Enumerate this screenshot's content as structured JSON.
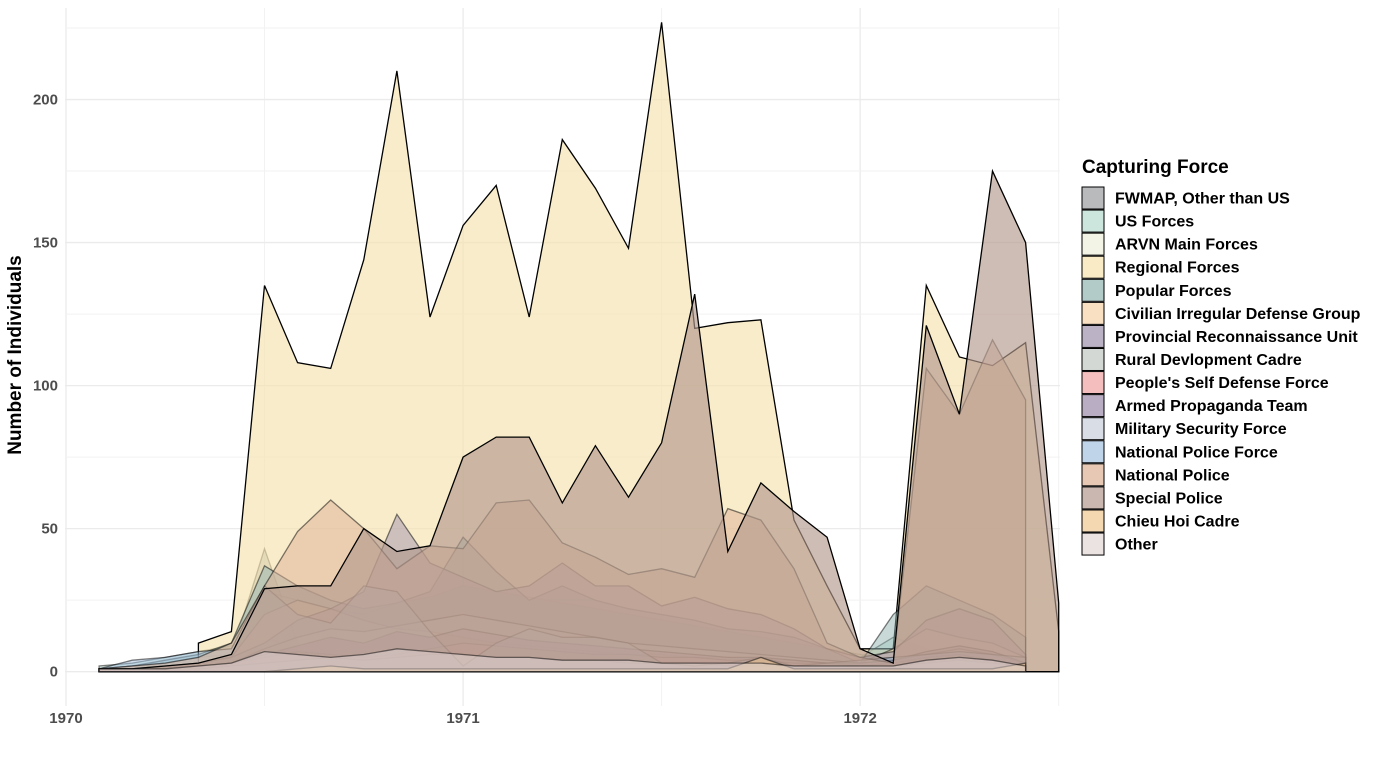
{
  "chart_data": {
    "type": "area",
    "title": "",
    "xlabel": "",
    "ylabel": "Number of Individuals",
    "grid": true,
    "legend_position": "right",
    "legend_title": "Capturing Force",
    "x_ticks": [
      "1970",
      "1971",
      "1972"
    ],
    "y_ticks": [
      0,
      50,
      100,
      150,
      200
    ],
    "ylim": [
      -12,
      232
    ],
    "xlim": [
      "1970-01",
      "1972-07"
    ],
    "series": [
      {
        "name": "FWMAP, Other than US",
        "color": "#9a9d9f",
        "x": [
          "1970-02",
          "1970-03",
          "1970-04",
          "1970-05",
          "1970-06",
          "1970-07",
          "1970-08",
          "1970-09",
          "1970-10",
          "1970-11",
          "1970-12",
          "1971-01",
          "1971-02",
          "1971-03",
          "1971-04",
          "1971-05",
          "1971-06",
          "1971-07",
          "1971-08",
          "1971-09",
          "1971-10",
          "1971-11",
          "1971-12",
          "1972-01",
          "1972-02",
          "1972-03",
          "1972-04",
          "1972-05",
          "1972-06"
        ],
        "values": [
          1,
          1,
          2,
          3,
          6,
          43,
          10,
          5,
          4,
          3,
          3,
          2,
          2,
          1,
          1,
          1,
          1,
          1,
          1,
          1,
          1,
          1,
          1,
          1,
          1,
          1,
          1,
          1,
          1
        ]
      },
      {
        "name": "US Forces",
        "color": "#b7dbd0",
        "x": [
          "1970-02",
          "1970-03",
          "1970-04",
          "1970-05",
          "1970-06",
          "1970-07",
          "1970-08",
          "1970-09",
          "1970-10",
          "1970-11",
          "1970-12",
          "1971-01",
          "1971-02",
          "1971-03",
          "1971-04",
          "1971-05",
          "1971-06",
          "1971-07",
          "1971-08",
          "1971-09",
          "1971-10",
          "1971-11",
          "1971-12",
          "1972-01",
          "1972-02",
          "1972-03",
          "1972-04",
          "1972-05",
          "1972-06"
        ],
        "values": [
          2,
          3,
          5,
          7,
          9,
          12,
          8,
          6,
          5,
          4,
          3,
          3,
          3,
          2,
          2,
          2,
          2,
          2,
          2,
          2,
          2,
          2,
          2,
          5,
          12,
          8,
          4,
          3,
          2
        ]
      },
      {
        "name": "ARVN Main Forces",
        "color": "#eef0da",
        "x": [
          "1970-02",
          "1970-03",
          "1970-04",
          "1970-05",
          "1970-06",
          "1970-07",
          "1970-08",
          "1970-09",
          "1970-10",
          "1970-11",
          "1970-12",
          "1971-01",
          "1971-02",
          "1971-03",
          "1971-04",
          "1971-05",
          "1971-06",
          "1971-07",
          "1971-08",
          "1971-09",
          "1971-10",
          "1971-11",
          "1971-12",
          "1972-01",
          "1972-02",
          "1972-03",
          "1972-04",
          "1972-05",
          "1972-06"
        ],
        "values": [
          1,
          2,
          3,
          5,
          6,
          28,
          25,
          22,
          20,
          24,
          26,
          30,
          28,
          26,
          24,
          22,
          20,
          18,
          16,
          14,
          12,
          10,
          8,
          6,
          4,
          6,
          8,
          6,
          4
        ]
      },
      {
        "name": "Regional Forces",
        "color": "#f5e2ad",
        "x": [
          "1970-05",
          "1970-06",
          "1970-07",
          "1970-08",
          "1970-09",
          "1970-10",
          "1970-11",
          "1970-12",
          "1971-01",
          "1971-02",
          "1971-03",
          "1971-04",
          "1971-05",
          "1971-06",
          "1971-07",
          "1971-08",
          "1971-09",
          "1971-10",
          "1971-11",
          "1971-12",
          "1972-01",
          "1972-02",
          "1972-03",
          "1972-04",
          "1972-05",
          "1972-06",
          "1972-07"
        ],
        "values": [
          10,
          14,
          135,
          108,
          106,
          144,
          210,
          124,
          156,
          170,
          124,
          186,
          169,
          148,
          227,
          120,
          122,
          123,
          53,
          30,
          8,
          8,
          135,
          110,
          107,
          115,
          14
        ]
      },
      {
        "name": "Popular Forces",
        "color": "#91b3b1",
        "x": [
          "1970-02",
          "1970-03",
          "1970-04",
          "1970-05",
          "1970-06",
          "1970-07",
          "1970-08",
          "1970-09",
          "1970-10",
          "1970-11",
          "1970-12",
          "1971-01",
          "1971-02",
          "1971-03",
          "1971-04",
          "1971-05",
          "1971-06",
          "1971-07",
          "1971-08",
          "1971-09",
          "1971-10",
          "1971-11",
          "1971-12",
          "1972-01",
          "1972-02",
          "1972-03",
          "1972-04",
          "1972-05",
          "1972-06"
        ],
        "values": [
          1,
          2,
          4,
          6,
          10,
          37,
          30,
          25,
          22,
          24,
          28,
          47,
          35,
          25,
          30,
          25,
          22,
          20,
          18,
          15,
          14,
          12,
          8,
          3,
          20,
          30,
          25,
          20,
          12
        ]
      },
      {
        "name": "Civilian Irregular Defense Group",
        "color": "#f7d3a8",
        "x": [
          "1970-02",
          "1970-03",
          "1970-04",
          "1970-05",
          "1970-06",
          "1970-07",
          "1970-08",
          "1970-09",
          "1970-10",
          "1970-11",
          "1970-12",
          "1971-01",
          "1971-02",
          "1971-03",
          "1971-04",
          "1971-05",
          "1971-06",
          "1971-07",
          "1971-08",
          "1971-09",
          "1971-10",
          "1971-11",
          "1971-12",
          "1972-01",
          "1972-02",
          "1972-03",
          "1972-04",
          "1972-05",
          "1972-06"
        ],
        "values": [
          1,
          1,
          2,
          3,
          5,
          20,
          25,
          22,
          18,
          15,
          14,
          12,
          10,
          9,
          8,
          7,
          6,
          6,
          5,
          5,
          4,
          4,
          3,
          3,
          8,
          15,
          12,
          10,
          5
        ]
      },
      {
        "name": "Provincial Reconnaissance Unit",
        "color": "#9f92ad",
        "x": [
          "1970-02",
          "1970-03",
          "1970-04",
          "1970-05",
          "1970-06",
          "1970-07",
          "1970-08",
          "1970-09",
          "1970-10",
          "1970-11",
          "1970-12",
          "1971-01",
          "1971-02",
          "1971-03",
          "1971-04",
          "1971-05",
          "1971-06",
          "1971-07",
          "1971-08",
          "1971-09",
          "1971-10",
          "1971-11",
          "1971-12",
          "1972-01",
          "1972-02",
          "1972-03",
          "1972-04",
          "1972-05",
          "1972-06"
        ],
        "values": [
          1,
          1,
          2,
          3,
          5,
          10,
          18,
          22,
          28,
          55,
          38,
          33,
          28,
          30,
          38,
          30,
          30,
          23,
          26,
          22,
          20,
          15,
          8,
          5,
          7,
          18,
          22,
          18,
          6
        ]
      },
      {
        "name": "Rural Devlopment Cadre",
        "color": "#c2c8c2",
        "x": [
          "1970-02",
          "1970-03",
          "1970-04",
          "1970-05",
          "1970-06",
          "1970-07",
          "1970-08",
          "1970-09",
          "1970-10",
          "1970-11",
          "1970-12",
          "1971-01",
          "1971-02",
          "1971-03",
          "1971-04",
          "1971-05",
          "1971-06",
          "1971-07",
          "1971-08",
          "1971-09",
          "1971-10",
          "1971-11",
          "1971-12",
          "1972-01",
          "1972-02",
          "1972-03",
          "1972-04",
          "1972-05",
          "1972-06"
        ],
        "values": [
          1,
          1,
          1,
          2,
          3,
          8,
          12,
          15,
          14,
          16,
          18,
          20,
          18,
          16,
          14,
          12,
          10,
          9,
          8,
          7,
          6,
          5,
          4,
          3,
          4,
          6,
          8,
          6,
          3
        ]
      },
      {
        "name": "People's Self Defense Force",
        "color": "#f0a3a3",
        "x": [
          "1970-02",
          "1970-03",
          "1970-04",
          "1970-05",
          "1970-06",
          "1970-07",
          "1970-08",
          "1970-09",
          "1970-10",
          "1970-11",
          "1970-12",
          "1971-01",
          "1971-02",
          "1971-03",
          "1971-04",
          "1971-05",
          "1971-06",
          "1971-07",
          "1971-08",
          "1971-09",
          "1971-10",
          "1971-11",
          "1971-12",
          "1972-01",
          "1972-02",
          "1972-03",
          "1972-04",
          "1972-05",
          "1972-06"
        ],
        "values": [
          1,
          1,
          1,
          2,
          3,
          5,
          7,
          6,
          5,
          6,
          8,
          10,
          9,
          8,
          7,
          6,
          6,
          5,
          5,
          4,
          4,
          3,
          3,
          2,
          3,
          5,
          6,
          4,
          2
        ]
      },
      {
        "name": "Armed Propaganda Team",
        "color": "#9a8aa8",
        "x": [
          "1970-02",
          "1970-03",
          "1970-04",
          "1970-05",
          "1970-06",
          "1970-07",
          "1970-08",
          "1970-09",
          "1970-10",
          "1970-11",
          "1970-12",
          "1971-01",
          "1971-02",
          "1971-03",
          "1971-04",
          "1971-05",
          "1971-06",
          "1971-07",
          "1971-08",
          "1971-09",
          "1971-10",
          "1971-11",
          "1971-12",
          "1972-01",
          "1972-02",
          "1972-03",
          "1972-04",
          "1972-05",
          "1972-06"
        ],
        "values": [
          1,
          1,
          1,
          2,
          3,
          6,
          9,
          12,
          10,
          14,
          12,
          15,
          13,
          11,
          10,
          9,
          8,
          7,
          6,
          5,
          5,
          4,
          3,
          3,
          4,
          7,
          9,
          7,
          3
        ]
      },
      {
        "name": "Military Security Force",
        "color": "#c8cfdb",
        "x": [
          "1970-02",
          "1970-03",
          "1970-04",
          "1970-05",
          "1970-06",
          "1970-07",
          "1970-08",
          "1970-09",
          "1970-10",
          "1970-11",
          "1970-12",
          "1971-01",
          "1971-02",
          "1971-03",
          "1971-04",
          "1971-05",
          "1971-06",
          "1971-07",
          "1971-08",
          "1971-09",
          "1971-10",
          "1971-11",
          "1971-12",
          "1972-01",
          "1972-02",
          "1972-03",
          "1972-04",
          "1972-05",
          "1972-06"
        ],
        "values": [
          1,
          1,
          1,
          1,
          2,
          3,
          4,
          5,
          4,
          5,
          6,
          6,
          5,
          5,
          4,
          4,
          3,
          3,
          3,
          2,
          2,
          2,
          2,
          2,
          2,
          3,
          4,
          3,
          2
        ]
      },
      {
        "name": "National Police Force",
        "color": "#a4c0df",
        "x": [
          "1970-02",
          "1970-03",
          "1970-04",
          "1970-05",
          "1970-06",
          "1970-07",
          "1970-08",
          "1970-09",
          "1970-10",
          "1970-11",
          "1970-12",
          "1971-01",
          "1971-02",
          "1971-03",
          "1971-04",
          "1971-05",
          "1971-06",
          "1971-07",
          "1971-08",
          "1971-09",
          "1971-10",
          "1971-11",
          "1971-12",
          "1972-01",
          "1972-02",
          "1972-03",
          "1972-04",
          "1972-05",
          "1972-06"
        ],
        "values": [
          1,
          4,
          5,
          7,
          8,
          30,
          20,
          17,
          30,
          28,
          14,
          2,
          10,
          15,
          12,
          12,
          10,
          3,
          2,
          3,
          5,
          2,
          3,
          4,
          5,
          6,
          7,
          6,
          5
        ]
      },
      {
        "name": "National Police",
        "color": "#ddb096",
        "x": [
          "1970-02",
          "1970-03",
          "1970-04",
          "1970-05",
          "1970-06",
          "1970-07",
          "1970-08",
          "1970-09",
          "1970-10",
          "1970-11",
          "1970-12",
          "1971-01",
          "1971-02",
          "1971-03",
          "1971-04",
          "1971-05",
          "1971-06",
          "1971-07",
          "1971-08",
          "1971-09",
          "1971-10",
          "1971-11",
          "1971-12",
          "1972-01",
          "1972-02",
          "1972-03",
          "1972-04",
          "1972-05",
          "1972-06"
        ],
        "values": [
          1,
          2,
          3,
          5,
          10,
          30,
          49,
          60,
          50,
          36,
          44,
          43,
          59,
          60,
          45,
          40,
          34,
          36,
          33,
          57,
          53,
          36,
          10,
          5,
          3,
          106,
          90,
          116,
          95
        ]
      },
      {
        "name": "Special Police",
        "color": "#b39a8e",
        "x": [
          "1970-02",
          "1970-03",
          "1970-04",
          "1970-05",
          "1970-06",
          "1970-07",
          "1970-08",
          "1970-09",
          "1970-10",
          "1970-11",
          "1970-12",
          "1971-01",
          "1971-02",
          "1971-03",
          "1971-04",
          "1971-05",
          "1971-06",
          "1971-07",
          "1971-08",
          "1971-09",
          "1971-10",
          "1971-11",
          "1971-12",
          "1972-01",
          "1972-02",
          "1972-03",
          "1972-04",
          "1972-05",
          "1972-06",
          "1972-07"
        ],
        "values": [
          1,
          1,
          2,
          3,
          6,
          29,
          30,
          30,
          50,
          42,
          44,
          75,
          82,
          82,
          59,
          79,
          61,
          80,
          132,
          42,
          66,
          56,
          47,
          8,
          3,
          121,
          90,
          175,
          150,
          24
        ]
      },
      {
        "name": "Chieu Hoi Cadre",
        "color": "#f0c890",
        "x": [
          "1970-02",
          "1970-03",
          "1970-04",
          "1970-05",
          "1970-06",
          "1970-07",
          "1970-08",
          "1970-09",
          "1970-10",
          "1970-11",
          "1970-12",
          "1971-01",
          "1971-02",
          "1971-03",
          "1971-04",
          "1971-05",
          "1971-06",
          "1971-07",
          "1971-08",
          "1971-09",
          "1971-10",
          "1971-11",
          "1971-12",
          "1972-01",
          "1972-02",
          "1972-03",
          "1972-04",
          "1972-05",
          "1972-06"
        ],
        "values": [
          0,
          0,
          0,
          0,
          0,
          0,
          1,
          2,
          1,
          1,
          1,
          1,
          1,
          1,
          1,
          1,
          1,
          1,
          1,
          1,
          5,
          1,
          1,
          1,
          1,
          1,
          1,
          1,
          3
        ]
      },
      {
        "name": "Other",
        "color": "#e2d5d5",
        "x": [
          "1970-02",
          "1970-03",
          "1970-04",
          "1970-05",
          "1970-06",
          "1970-07",
          "1970-08",
          "1970-09",
          "1970-10",
          "1970-11",
          "1970-12",
          "1971-01",
          "1971-02",
          "1971-03",
          "1971-04",
          "1971-05",
          "1971-06",
          "1971-07",
          "1971-08",
          "1971-09",
          "1971-10",
          "1971-11",
          "1971-12",
          "1972-01",
          "1972-02",
          "1972-03",
          "1972-04",
          "1972-05",
          "1972-06"
        ],
        "values": [
          1,
          1,
          1,
          2,
          3,
          7,
          6,
          5,
          6,
          8,
          7,
          6,
          5,
          5,
          4,
          4,
          4,
          3,
          3,
          3,
          3,
          2,
          2,
          2,
          2,
          4,
          5,
          4,
          2
        ]
      }
    ]
  }
}
